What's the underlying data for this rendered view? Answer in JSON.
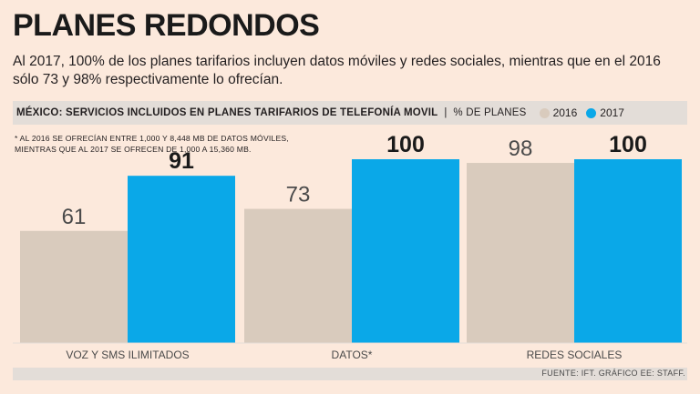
{
  "header": {
    "title": "PLANES REDONDOS",
    "subtitle": "Al 2017, 100% de los planes tarifarios incluyen datos móviles y redes sociales, mientras que en el 2016 sólo 73 y 98% respectivamente lo ofrecían."
  },
  "band": {
    "heading": "MÉXICO: SERVICIOS INCLUIDOS EN PLANES TARIFARIOS DE TELEFONÍA MOVIL",
    "separator": "|",
    "unit": "% DE PLANES"
  },
  "note": {
    "line1": "* AL 2016 SE OFRECÍAN ENTRE 1,000 Y 8,448 MB DE DATOS MÓVILES,",
    "line2": "MIENTRAS QUE AL 2017 SE OFRECEN DE 1,000 A 15,360 MB."
  },
  "footer": {
    "source": "FUENTE: IFT. GRÁFICO EE: STAFF."
  },
  "colors": {
    "s2016": "#d9cbbd",
    "s2017": "#0aa8e8",
    "background": "#fce9dc",
    "band": "#e3ddd8"
  },
  "chart_data": {
    "type": "bar",
    "title": "MÉXICO: SERVICIOS INCLUIDOS EN PLANES TARIFARIOS DE TELEFONÍA MOVIL",
    "ylabel": "% DE PLANES",
    "categories": [
      "VOZ Y SMS ILIMITADOS",
      "DATOS*",
      "REDES SOCIALES"
    ],
    "series": [
      {
        "name": "2016",
        "values": [
          61,
          73,
          98
        ]
      },
      {
        "name": "2017",
        "values": [
          91,
          100,
          100
        ]
      }
    ],
    "ylim": [
      0,
      100
    ],
    "legend": "top-right",
    "grid": false
  }
}
